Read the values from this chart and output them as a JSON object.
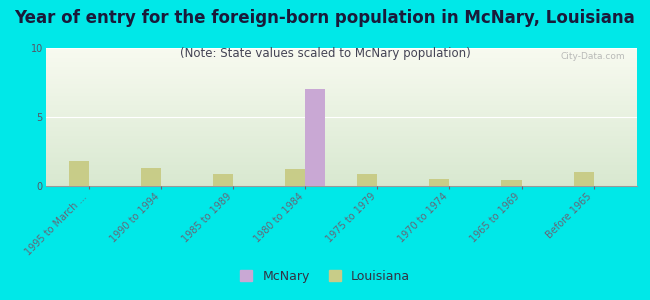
{
  "title": "Year of entry for the foreign-born population in McNary, Louisiana",
  "subtitle": "(Note: State values scaled to McNary population)",
  "categories": [
    "1995 to March ...",
    "1990 to 1994",
    "1985 to 1989",
    "1980 to 1984",
    "1975 to 1979",
    "1970 to 1974",
    "1965 to 1969",
    "Before 1965"
  ],
  "mcnary_values": [
    0,
    0,
    0,
    7,
    0,
    0,
    0,
    0
  ],
  "louisiana_values": [
    1.8,
    1.3,
    0.9,
    1.2,
    0.9,
    0.5,
    0.4,
    1.0
  ],
  "mcnary_color": "#c9a8d4",
  "louisiana_color": "#c8cc88",
  "background_color": "#00e8e8",
  "plot_bg_top_color": "#d8e8d0",
  "plot_bg_bottom_color": "#f8faf0",
  "ylim": [
    0,
    10
  ],
  "yticks": [
    0,
    5,
    10
  ],
  "bar_width": 0.28,
  "title_fontsize": 12,
  "subtitle_fontsize": 8.5,
  "tick_fontsize": 7,
  "axis_label_color": "#555566",
  "watermark": "City-Data.com"
}
